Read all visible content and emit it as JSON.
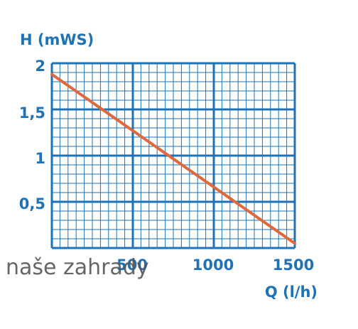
{
  "chart_data": {
    "type": "line",
    "xlabel": "Q (l/h)",
    "ylabel": "H (mWS)",
    "xlim": [
      0,
      1500
    ],
    "ylim": [
      0,
      2
    ],
    "x_ticks": [
      "500",
      "1000",
      "1500"
    ],
    "y_ticks": [
      "2",
      "1,5",
      "1",
      "0,5"
    ],
    "grid": true,
    "series": [
      {
        "x": [
          0,
          1500
        ],
        "y": [
          1.88,
          0.05
        ]
      }
    ]
  },
  "watermark": "naše zahrady",
  "colors": {
    "axis_text": "#1e73b8",
    "grid": "#1e73b8",
    "line": "#e0683a",
    "watermark": "#555555"
  }
}
